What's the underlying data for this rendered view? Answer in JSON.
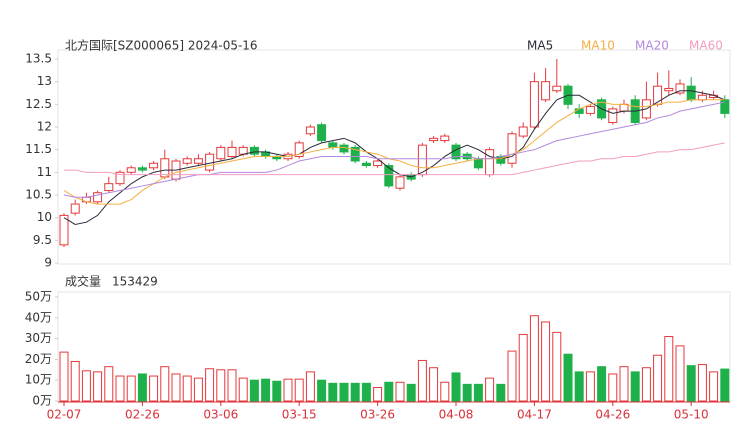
{
  "chart_data": [
    {
      "type": "candlestick",
      "title": "北方国际[SZ000065] 2024-05-16",
      "up_color": "#e4393c",
      "down_color": "#1eb04a",
      "ylim": [
        9,
        13.5
      ],
      "yticks": [
        9,
        9.5,
        10,
        10.5,
        11,
        11.5,
        12,
        12.5,
        13,
        13.5
      ],
      "open": [
        9.4,
        10.1,
        10.35,
        10.35,
        10.6,
        10.75,
        11.0,
        11.1,
        11.1,
        10.9,
        10.85,
        11.2,
        11.2,
        11.05,
        11.3,
        11.35,
        11.4,
        11.55,
        11.45,
        11.35,
        11.3,
        11.35,
        11.85,
        12.05,
        11.65,
        11.6,
        11.55,
        11.2,
        11.15,
        11.15,
        10.65,
        10.95,
        10.95,
        11.7,
        11.7,
        11.6,
        11.4,
        11.3,
        10.95,
        11.35,
        11.2,
        11.8,
        12.0,
        12.6,
        12.8,
        12.9,
        12.4,
        12.3,
        12.6,
        12.1,
        12.35,
        12.6,
        12.2,
        12.5,
        12.8,
        12.75,
        12.9,
        12.6,
        12.65,
        12.6
      ],
      "high": [
        10.1,
        10.4,
        10.55,
        10.6,
        10.9,
        11.05,
        11.15,
        11.15,
        11.25,
        11.5,
        11.3,
        11.35,
        11.4,
        11.45,
        11.6,
        11.7,
        11.6,
        11.6,
        11.5,
        11.4,
        11.45,
        11.7,
        12.05,
        12.1,
        11.7,
        11.65,
        11.6,
        11.25,
        11.3,
        11.2,
        10.95,
        11.0,
        11.65,
        11.8,
        11.85,
        11.65,
        11.45,
        11.35,
        11.55,
        11.4,
        11.9,
        12.1,
        13.2,
        13.3,
        13.5,
        12.95,
        12.5,
        12.5,
        12.65,
        12.45,
        12.6,
        12.7,
        13.0,
        13.2,
        13.25,
        13.05,
        13.1,
        12.8,
        12.8,
        12.7
      ],
      "low": [
        9.35,
        10.05,
        10.3,
        10.3,
        10.55,
        10.7,
        10.95,
        11.0,
        11.05,
        10.85,
        10.8,
        11.15,
        11.15,
        11.0,
        11.25,
        11.3,
        11.35,
        11.35,
        11.3,
        11.25,
        11.25,
        11.3,
        11.8,
        11.65,
        11.5,
        11.4,
        11.2,
        11.1,
        11.1,
        10.65,
        10.6,
        10.8,
        10.9,
        11.65,
        11.65,
        11.25,
        11.25,
        11.05,
        10.9,
        11.15,
        11.1,
        11.75,
        11.95,
        12.55,
        12.75,
        12.4,
        12.2,
        12.25,
        12.15,
        12.05,
        12.3,
        12.05,
        12.15,
        12.45,
        12.7,
        12.7,
        12.55,
        12.55,
        12.6,
        12.2
      ],
      "close": [
        10.05,
        10.3,
        10.45,
        10.55,
        10.75,
        11.0,
        11.1,
        11.05,
        11.2,
        11.3,
        11.25,
        11.3,
        11.3,
        11.4,
        11.55,
        11.55,
        11.55,
        11.4,
        11.35,
        11.3,
        11.4,
        11.65,
        12.0,
        11.7,
        11.55,
        11.45,
        11.25,
        11.15,
        11.25,
        10.7,
        10.9,
        10.85,
        11.6,
        11.75,
        11.8,
        11.3,
        11.3,
        11.1,
        11.5,
        11.2,
        11.85,
        12.0,
        13.0,
        13.0,
        12.9,
        12.5,
        12.3,
        12.45,
        12.2,
        12.4,
        12.5,
        12.1,
        12.6,
        12.9,
        12.85,
        12.95,
        12.6,
        12.7,
        12.7,
        12.3
      ],
      "series": [
        {
          "name": "MA5",
          "color": "#2b2b3a",
          "values": [
            10.0,
            9.85,
            9.9,
            10.05,
            10.35,
            10.55,
            10.75,
            10.9,
            11.0,
            11.05,
            11.05,
            11.1,
            11.15,
            11.2,
            11.25,
            11.3,
            11.4,
            11.45,
            11.45,
            11.4,
            11.35,
            11.4,
            11.55,
            11.65,
            11.7,
            11.75,
            11.65,
            11.45,
            11.3,
            11.1,
            10.95,
            10.9,
            11.0,
            11.15,
            11.35,
            11.5,
            11.6,
            11.5,
            11.35,
            11.3,
            11.35,
            11.55,
            11.95,
            12.3,
            12.6,
            12.7,
            12.7,
            12.55,
            12.4,
            12.3,
            12.35,
            12.35,
            12.4,
            12.55,
            12.7,
            12.8,
            12.8,
            12.75,
            12.7,
            12.6
          ]
        },
        {
          "name": "MA10",
          "color": "#f5b041",
          "values": [
            10.6,
            10.45,
            10.35,
            10.3,
            10.3,
            10.3,
            10.4,
            10.6,
            10.75,
            10.9,
            11.0,
            11.05,
            11.1,
            11.15,
            11.2,
            11.25,
            11.3,
            11.35,
            11.35,
            11.35,
            11.35,
            11.4,
            11.45,
            11.5,
            11.55,
            11.55,
            11.5,
            11.45,
            11.4,
            11.3,
            11.25,
            11.15,
            11.1,
            11.1,
            11.15,
            11.2,
            11.25,
            11.3,
            11.3,
            11.3,
            11.4,
            11.5,
            11.7,
            11.9,
            12.1,
            12.25,
            12.4,
            12.5,
            12.55,
            12.5,
            12.5,
            12.45,
            12.45,
            12.5,
            12.55,
            12.55,
            12.6,
            12.6,
            12.6,
            12.6
          ]
        },
        {
          "name": "MA20",
          "color": "#b388e0",
          "values": [
            10.5,
            10.45,
            10.45,
            10.5,
            10.55,
            10.6,
            10.65,
            10.7,
            10.75,
            10.8,
            10.85,
            10.9,
            10.95,
            10.95,
            11.0,
            11.0,
            11.0,
            11.0,
            11.0,
            11.05,
            11.15,
            11.25,
            11.3,
            11.35,
            11.35,
            11.35,
            11.35,
            11.35,
            11.3,
            11.3,
            11.3,
            11.3,
            11.3,
            11.3,
            11.3,
            11.35,
            11.35,
            11.3,
            11.3,
            11.35,
            11.4,
            11.45,
            11.5,
            11.6,
            11.7,
            11.75,
            11.8,
            11.85,
            11.9,
            11.95,
            12.0,
            12.05,
            12.1,
            12.2,
            12.25,
            12.35,
            12.4,
            12.45,
            12.5,
            12.55
          ]
        },
        {
          "name": "MA60",
          "color": "#f29cc3",
          "values": [
            11.05,
            11.05,
            11.0,
            11.0,
            11.0,
            10.95,
            10.95,
            10.95,
            10.95,
            10.95,
            10.95,
            10.95,
            10.95,
            10.95,
            10.95,
            10.95,
            10.95,
            10.95,
            10.95,
            10.95,
            10.95,
            10.95,
            10.95,
            10.95,
            10.95,
            10.95,
            10.95,
            10.95,
            10.95,
            10.95,
            10.95,
            10.95,
            10.95,
            10.95,
            10.95,
            10.95,
            10.95,
            10.95,
            10.95,
            10.95,
            10.95,
            11.0,
            11.05,
            11.1,
            11.15,
            11.2,
            11.25,
            11.25,
            11.3,
            11.3,
            11.35,
            11.35,
            11.4,
            11.45,
            11.45,
            11.5,
            11.5,
            11.55,
            11.6,
            11.65
          ]
        }
      ]
    },
    {
      "type": "bar",
      "title": "成交量",
      "latest": 153429,
      "ylim": [
        0,
        50
      ],
      "yticks": [
        {
          "value": 0,
          "label": "0万"
        },
        {
          "value": 10,
          "label": "10万"
        },
        {
          "value": 20,
          "label": "20万"
        },
        {
          "value": 30,
          "label": "30万"
        },
        {
          "value": 40,
          "label": "40万"
        },
        {
          "value": 50,
          "label": "50万"
        }
      ],
      "categories": [
        "02-07",
        null,
        null,
        null,
        null,
        null,
        null,
        "02-26",
        null,
        null,
        null,
        null,
        null,
        null,
        "03-06",
        null,
        null,
        null,
        null,
        null,
        null,
        "03-15",
        null,
        null,
        null,
        null,
        null,
        null,
        "03-26",
        null,
        null,
        null,
        null,
        null,
        null,
        "04-08",
        null,
        null,
        null,
        null,
        null,
        null,
        "04-17",
        null,
        null,
        null,
        null,
        null,
        null,
        "04-26",
        null,
        null,
        null,
        null,
        null,
        null,
        "05-10",
        null,
        null,
        null
      ],
      "values": [
        23.5,
        19,
        14.5,
        14,
        16.5,
        12,
        12,
        13,
        12,
        16.5,
        13,
        12,
        11,
        15.5,
        15,
        15,
        11,
        10,
        10.5,
        9.5,
        10.5,
        10.5,
        14,
        10,
        8.5,
        8.5,
        8.5,
        8.5,
        6.5,
        9,
        9,
        8,
        19.5,
        16,
        9,
        13.5,
        8,
        8,
        11,
        8,
        24,
        32,
        41,
        38,
        33,
        22.5,
        14,
        14,
        16.5,
        13,
        16.5,
        14,
        16,
        22,
        31,
        26.5,
        17,
        17.5,
        14,
        15.3429
      ]
    }
  ]
}
